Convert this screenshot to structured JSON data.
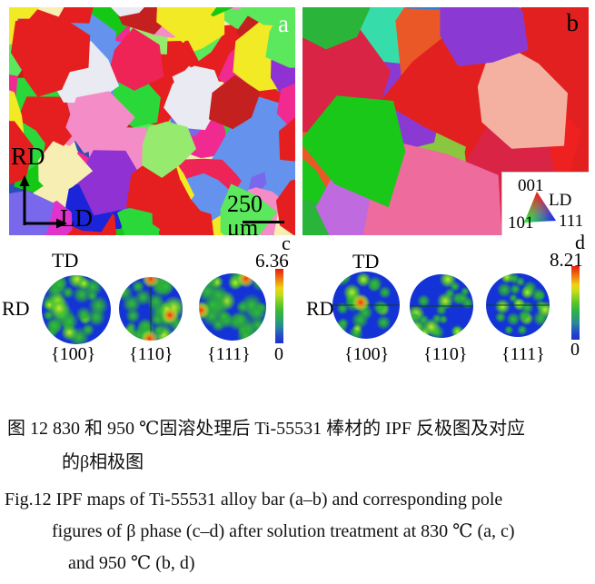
{
  "figure": {
    "panel_a": {
      "label": "a",
      "axis_vertical": "RD",
      "axis_horizontal": "LD",
      "scale_bar": "250 μm"
    },
    "panel_b": {
      "label": "b",
      "ipf_key": {
        "corner_top": "001",
        "direction": "LD",
        "corner_bottom_left": "101",
        "corner_bottom_right": "111"
      }
    },
    "panel_c": {
      "label": "c",
      "td": "TD",
      "rd": "RD",
      "scale_max": "6.36",
      "scale_min": "0",
      "pole_labels": [
        "{100}",
        "{110}",
        "{111}"
      ]
    },
    "panel_d": {
      "label": "d",
      "td": "TD",
      "rd": "RD",
      "scale_max": "8.21",
      "scale_min": "0",
      "pole_labels": [
        "{100}",
        "{110}",
        "{111}"
      ]
    }
  },
  "captions": {
    "zh_line1": "图 12  830 和 950 ℃固溶处理后 Ti-55531 棒材的 IPF 反极图及对应",
    "zh_line2": "的β相极图",
    "en_line1": "Fig.12  IPF maps of Ti-55531 alloy bar (a–b) and corresponding pole",
    "en_line2": "figures of β phase (c–d) after solution treatment at 830 ℃ (a, c)",
    "en_line3": "and 950 ℃ (b, d)"
  },
  "colors": {
    "pole_base_blue": "#1433d6",
    "intensity_scale_top": "#e31e0e",
    "intensity_scale_bottom": "#1d2fd2",
    "ipf_red": "#ff0000",
    "ipf_green": "#00ff00",
    "ipf_blue": "#0000ff"
  }
}
